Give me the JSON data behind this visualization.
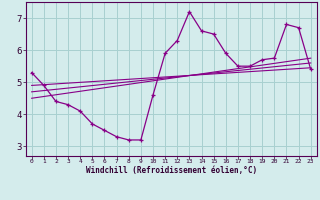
{
  "xlabel": "Windchill (Refroidissement éolien,°C)",
  "background_color": "#d4ecec",
  "grid_color": "#a8d0d0",
  "line_color": "#880088",
  "x_hours": [
    0,
    1,
    2,
    3,
    4,
    5,
    6,
    7,
    8,
    9,
    10,
    11,
    12,
    13,
    14,
    15,
    16,
    17,
    18,
    19,
    20,
    21,
    22,
    23
  ],
  "windchill": [
    5.3,
    4.9,
    4.4,
    4.3,
    4.1,
    3.7,
    3.5,
    3.3,
    3.2,
    3.2,
    4.6,
    5.9,
    6.3,
    7.2,
    6.6,
    6.5,
    5.9,
    5.5,
    5.5,
    5.7,
    5.75,
    6.8,
    6.7,
    5.4
  ],
  "trend1_x": [
    0,
    23
  ],
  "trend1_y": [
    4.9,
    5.45
  ],
  "trend2_x": [
    0,
    23
  ],
  "trend2_y": [
    4.7,
    5.6
  ],
  "trend3_x": [
    0,
    23
  ],
  "trend3_y": [
    4.5,
    5.75
  ],
  "xlim": [
    -0.5,
    23.5
  ],
  "ylim": [
    2.7,
    7.5
  ],
  "yticks": [
    3,
    4,
    5,
    6,
    7
  ],
  "xticks": [
    0,
    1,
    2,
    3,
    4,
    5,
    6,
    7,
    8,
    9,
    10,
    11,
    12,
    13,
    14,
    15,
    16,
    17,
    18,
    19,
    20,
    21,
    22,
    23
  ]
}
